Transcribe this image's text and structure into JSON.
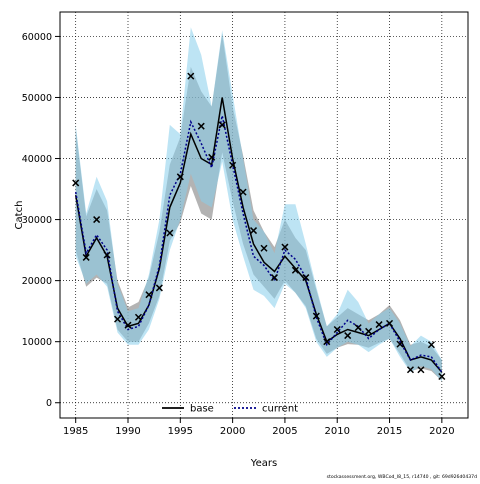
{
  "chart_data": {
    "type": "line",
    "xlabel": "Years",
    "ylabel": "Catch",
    "xlim": [
      1983.5,
      2022.5
    ],
    "ylim": [
      -2500,
      64000
    ],
    "x_ticks": [
      1985,
      1990,
      1995,
      2000,
      2005,
      2010,
      2015,
      2020
    ],
    "y_ticks": [
      0,
      10000,
      20000,
      30000,
      40000,
      50000,
      60000
    ],
    "x_tick_labels": [
      "1985",
      "1990",
      "1995",
      "2000",
      "2005",
      "2010",
      "2015",
      "2020"
    ],
    "y_tick_labels": [
      "0",
      "10000",
      "20000",
      "30000",
      "40000",
      "50000",
      "60000"
    ],
    "grid": true,
    "legend_position": "bottom-center",
    "footer": "stockassessment.org, WBCod_I8_15, r14740 , git: 69d926d0437d",
    "years": [
      1985,
      1986,
      1987,
      1988,
      1989,
      1990,
      1991,
      1992,
      1993,
      1994,
      1995,
      1996,
      1997,
      1998,
      1999,
      2000,
      2001,
      2002,
      2003,
      2004,
      2005,
      2006,
      2007,
      2008,
      2009,
      2010,
      2011,
      2012,
      2013,
      2014,
      2015,
      2016,
      2017,
      2018,
      2019,
      2020
    ],
    "observed": {
      "marker": "x",
      "values": [
        36000,
        23800,
        30000,
        24200,
        13700,
        12700,
        14000,
        17700,
        18800,
        27800,
        37000,
        53500,
        45300,
        40200,
        45500,
        38900,
        34500,
        28200,
        25300,
        20500,
        25500,
        21700,
        20500,
        14200,
        10000,
        12000,
        11000,
        12300,
        11700,
        12800,
        13000,
        9600,
        5400,
        5400,
        9500,
        4300
      ]
    },
    "series": [
      {
        "name": "base",
        "color": "#000000",
        "band_color": "#808080",
        "line_style": "solid",
        "values": [
          34000,
          24000,
          27000,
          24000,
          15500,
          12500,
          13000,
          16000,
          22000,
          32000,
          36000,
          44000,
          40000,
          39000,
          50000,
          40000,
          32000,
          26000,
          23000,
          21500,
          24000,
          22000,
          20000,
          14500,
          10000,
          11200,
          12000,
          11500,
          11000,
          12000,
          13000,
          10500,
          7000,
          7500,
          7000,
          5000
        ],
        "lower": [
          25000,
          19000,
          20500,
          19500,
          12000,
          10000,
          10000,
          13000,
          17500,
          26500,
          29500,
          35500,
          31000,
          30000,
          41000,
          33000,
          26000,
          21000,
          19000,
          17000,
          20000,
          18000,
          15800,
          10500,
          8000,
          9000,
          9600,
          9500,
          9000,
          9800,
          10500,
          8000,
          5200,
          5600,
          5200,
          3600
        ],
        "upper": [
          45000,
          30500,
          35000,
          31500,
          20000,
          15600,
          16500,
          20500,
          28000,
          39000,
          43500,
          55000,
          51000,
          48500,
          60500,
          48500,
          40500,
          31500,
          28000,
          25500,
          30000,
          27000,
          25000,
          18500,
          12500,
          14000,
          15500,
          14500,
          13500,
          14500,
          16000,
          13500,
          9500,
          10000,
          9200,
          7000
        ]
      },
      {
        "name": "current",
        "color": "#00008b",
        "band_color": "#87ceeb",
        "line_style": "dotted",
        "values": [
          34500,
          24500,
          27500,
          25000,
          15000,
          12000,
          12500,
          16000,
          22500,
          34000,
          37500,
          46000,
          42500,
          38500,
          47000,
          39000,
          31000,
          24000,
          22500,
          20000,
          25000,
          23500,
          20500,
          14000,
          9500,
          11500,
          13500,
          12500,
          10500,
          12000,
          13000,
          10000,
          7000,
          7800,
          7500,
          5000
        ],
        "lower": [
          24000,
          19500,
          21000,
          19000,
          11500,
          9500,
          9500,
          12000,
          17000,
          25000,
          30000,
          37500,
          33000,
          32000,
          39500,
          30000,
          24000,
          18500,
          17500,
          15500,
          19500,
          18000,
          15500,
          10000,
          7500,
          9000,
          10000,
          9500,
          8300,
          9500,
          10500,
          7500,
          5000,
          6000,
          5500,
          3500
        ],
        "upper": [
          45500,
          31000,
          37000,
          33000,
          19500,
          15000,
          15500,
          21000,
          30000,
          45500,
          44000,
          61500,
          57000,
          48500,
          61000,
          50500,
          40000,
          30000,
          28000,
          24500,
          32500,
          32500,
          26000,
          19000,
          12500,
          14500,
          18500,
          16500,
          13000,
          14500,
          15500,
          13000,
          9300,
          11000,
          10000,
          7000
        ]
      }
    ]
  }
}
